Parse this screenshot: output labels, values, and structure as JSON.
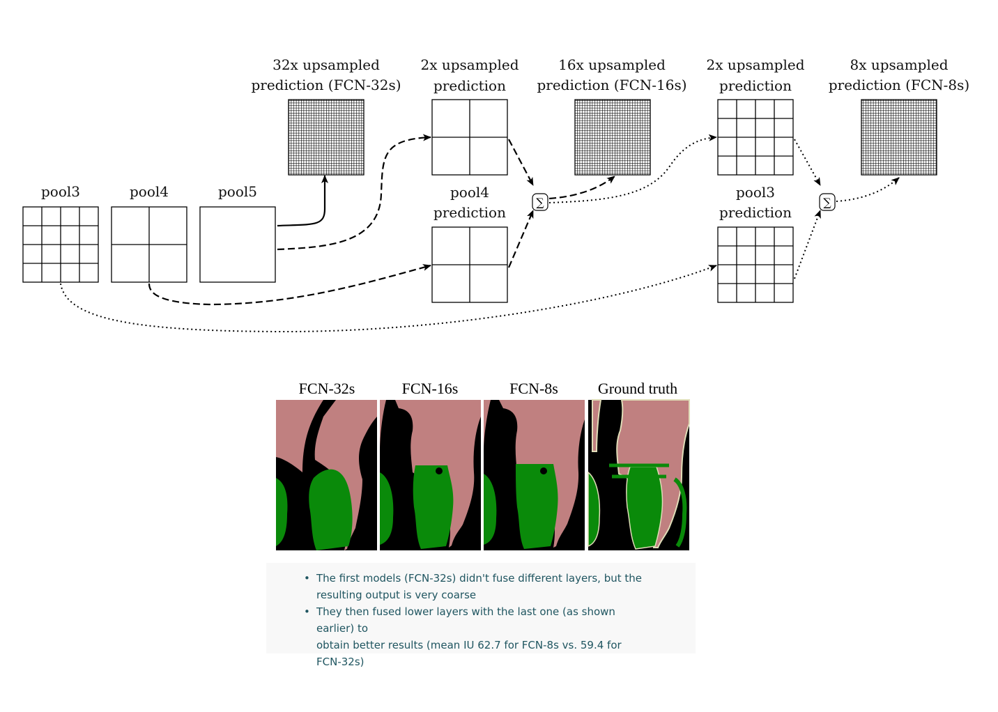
{
  "diagram": {
    "labels": {
      "pool3": "pool3",
      "pool4": "pool4",
      "pool5": "pool5",
      "up32": [
        "32x upsampled",
        "prediction (FCN-32s)"
      ],
      "up2a": [
        "2x upsampled",
        "prediction"
      ],
      "up16": [
        "16x upsampled",
        "prediction (FCN-16s)"
      ],
      "up2b": [
        "2x upsampled",
        "prediction"
      ],
      "up8": [
        "8x upsampled",
        "prediction (FCN-8s)"
      ],
      "pool4pred": [
        "pool4",
        "prediction"
      ],
      "pool3pred": [
        "pool3",
        "prediction"
      ]
    },
    "sum_symbol": "∑"
  },
  "results": {
    "titles": [
      "FCN-32s",
      "FCN-16s",
      "FCN-8s",
      "Ground truth"
    ],
    "colors": {
      "person": "#c08080",
      "bicycle": "#0a8a0a",
      "background": "#000000",
      "void": "#e0ddb8"
    },
    "bullets": [
      [
        "The first models (FCN-32s) didn't fuse different layers, but the",
        "resulting output is very coarse"
      ],
      [
        "They then fused lower layers with the last one (as shown earlier) to",
        "obtain better results (mean IU 62.7 for FCN-8s vs. 59.4 for",
        "FCN-32s)"
      ]
    ],
    "bullet_symbol": "•"
  }
}
